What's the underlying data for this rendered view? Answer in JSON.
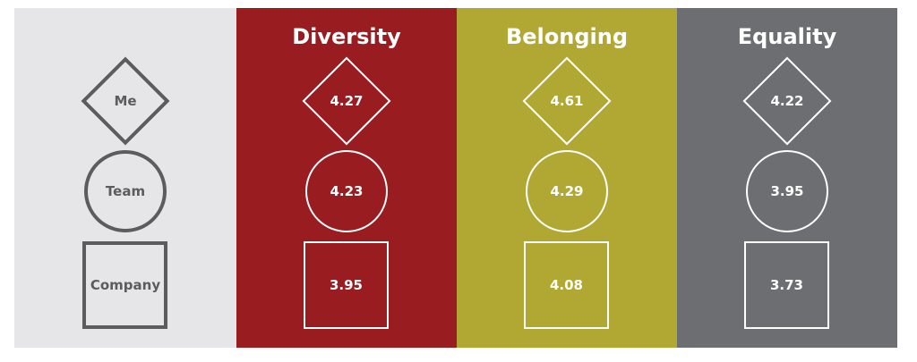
{
  "colors": {
    "labels_bg": "#e6e6e8",
    "label_stroke": "#5c5c5e",
    "diversity_bg": "#981c20",
    "belonging_bg": "#b1a834",
    "equality_bg": "#6d6e71"
  },
  "icons": {
    "row_me": "diamond-icon",
    "row_team": "circle-icon",
    "row_company": "square-icon"
  },
  "rows": {
    "me": "Me",
    "team": "Team",
    "company": "Company"
  },
  "columns": [
    {
      "title": "Diversity",
      "me": "4.27",
      "team": "4.23",
      "company": "3.95"
    },
    {
      "title": "Belonging",
      "me": "4.61",
      "team": "4.29",
      "company": "4.08"
    },
    {
      "title": "Equality",
      "me": "4.22",
      "team": "3.95",
      "company": "3.73"
    }
  ]
}
